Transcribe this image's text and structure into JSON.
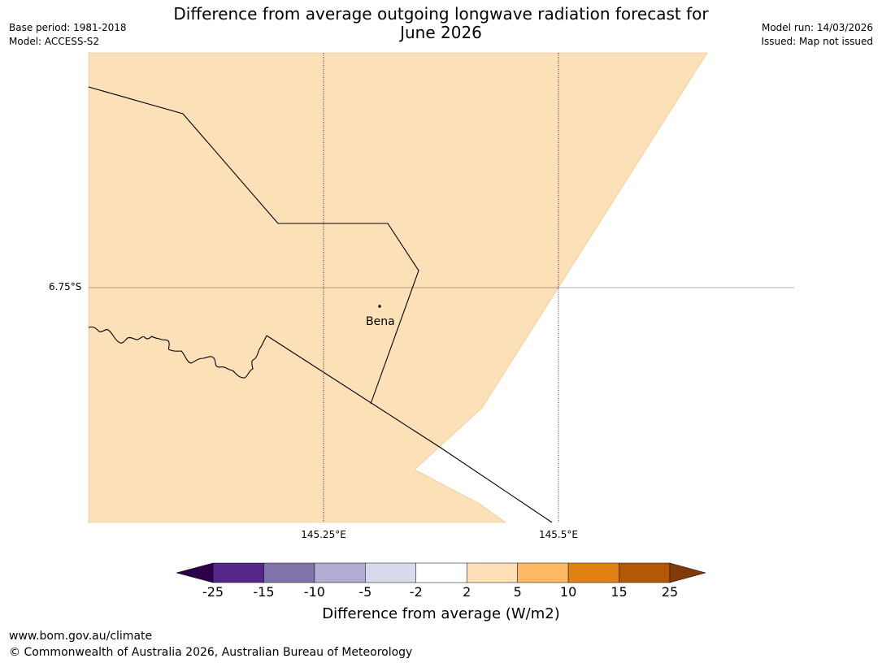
{
  "header": {
    "title_line1": "Difference from average outgoing longwave radiation forecast for",
    "title_line2": "June 2026",
    "base_period": "Base period: 1981-2018",
    "model": "Model: ACCESS-S2",
    "model_run": "Model run: 14/03/2026",
    "issued": "Issued: Map not issued"
  },
  "map": {
    "lat_label": "6.75°S",
    "lon_labels": [
      "145.25°E",
      "145.5°E"
    ],
    "place": "Bena",
    "colors": {
      "shaded": "#fce0b7",
      "border": "#000000",
      "grid": "#000000"
    }
  },
  "colorbar": {
    "title": "Difference from average (W/m2)",
    "ticks": [
      "-25",
      "-15",
      "-10",
      "-5",
      "-2",
      "2",
      "5",
      "10",
      "15",
      "25"
    ],
    "colors": {
      "under": "#2d004b",
      "bins": [
        "#542788",
        "#8073ac",
        "#b2abd2",
        "#d8daeb",
        "#ffffff",
        "#fee0b6",
        "#fdb863",
        "#e08214",
        "#b35806"
      ],
      "over": "#7f3b08"
    }
  },
  "footer": {
    "url": "www.bom.gov.au/climate",
    "copyright": "© Commonwealth of Australia 2026, Australian Bureau of Meteorology"
  }
}
